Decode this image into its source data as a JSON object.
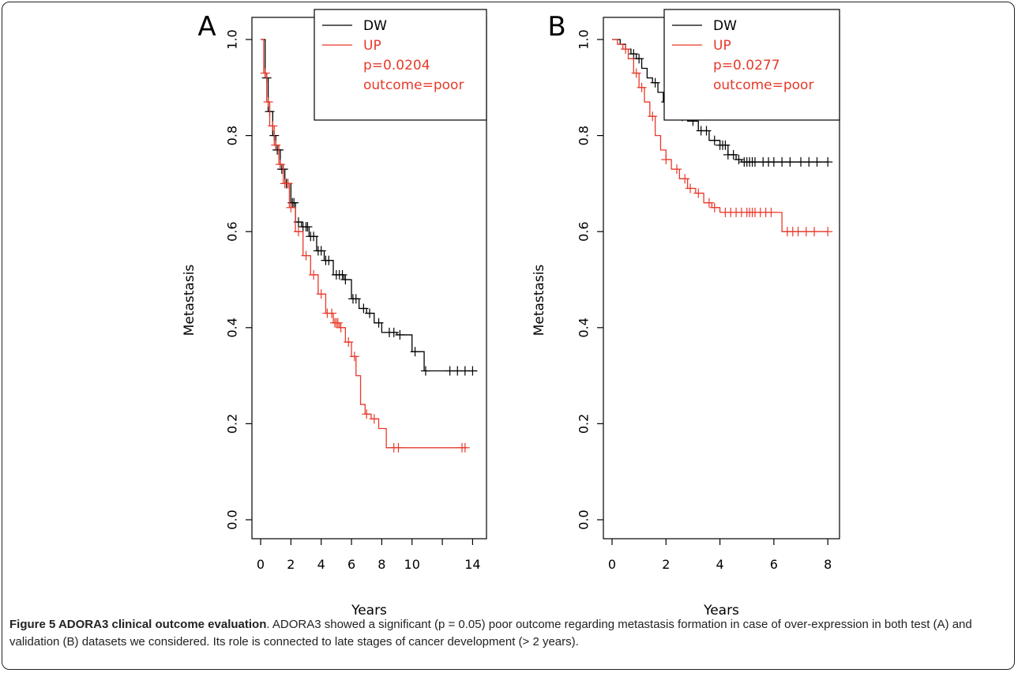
{
  "caption": {
    "label": "Figure 5",
    "title": "ADORA3 clinical outcome evaluation",
    "text": ". ADORA3 showed a significant (p = 0.05) poor outcome regarding metastasis formation in case of over-expression in both test (A) and validation (B) datasets we considered. Its role is connected to late stages of cancer development (> 2 years)."
  },
  "colors": {
    "DW": "#000000",
    "UP": "#e8392a"
  },
  "chart_data": [
    {
      "type": "line",
      "panel": "A",
      "xlabel": "Years",
      "ylabel": "Metastasis",
      "xlim": [
        0,
        14.5
      ],
      "ylim": [
        0,
        1.0
      ],
      "xticks": [
        0,
        2,
        4,
        6,
        8,
        10,
        12,
        14
      ],
      "xtick_labels": [
        "0",
        "2",
        "4",
        "6",
        "8",
        "10",
        "",
        "14"
      ],
      "yticks": [
        0.0,
        0.2,
        0.4,
        0.6,
        0.8,
        1.0
      ],
      "ytick_labels": [
        "0.0",
        "0.2",
        "0.4",
        "0.6",
        "0.8",
        "1.0"
      ],
      "legend": {
        "position": "top-right",
        "entries": [
          "DW",
          "UP"
        ],
        "p": "p=0.0204",
        "outcome": "outcome=poor"
      },
      "series": [
        {
          "name": "DW",
          "x": [
            0,
            0.3,
            0.5,
            0.8,
            1.0,
            1.3,
            1.6,
            2.0,
            2.3,
            2.7,
            3.2,
            3.7,
            4.2,
            4.8,
            5.5,
            6.0,
            6.5,
            7.0,
            7.5,
            8.0,
            9.0,
            10.0,
            10.4,
            10.8,
            14.3
          ],
          "y": [
            1.0,
            0.92,
            0.85,
            0.8,
            0.77,
            0.73,
            0.7,
            0.66,
            0.62,
            0.61,
            0.59,
            0.56,
            0.54,
            0.51,
            0.5,
            0.46,
            0.44,
            0.43,
            0.41,
            0.39,
            0.385,
            0.35,
            0.35,
            0.31,
            0.31
          ],
          "censor_x": [
            0.4,
            0.6,
            0.9,
            1.1,
            1.2,
            1.4,
            1.5,
            1.7,
            1.8,
            2.1,
            2.2,
            2.5,
            2.8,
            3.0,
            3.1,
            3.3,
            3.5,
            3.8,
            4.0,
            4.3,
            4.5,
            5.0,
            5.2,
            5.4,
            5.6,
            6.1,
            6.3,
            6.8,
            7.2,
            7.8,
            8.5,
            8.8,
            9.2,
            10.2,
            10.9,
            12.5,
            13.0,
            13.5,
            14.0
          ]
        },
        {
          "name": "UP",
          "x": [
            0,
            0.2,
            0.4,
            0.6,
            0.9,
            1.2,
            1.5,
            1.9,
            2.3,
            2.8,
            3.3,
            3.8,
            4.3,
            4.8,
            5.2,
            5.6,
            6.0,
            6.3,
            6.6,
            6.9,
            7.3,
            7.8,
            8.3,
            13.6
          ],
          "y": [
            1.0,
            0.93,
            0.87,
            0.82,
            0.78,
            0.74,
            0.7,
            0.65,
            0.6,
            0.55,
            0.51,
            0.47,
            0.43,
            0.41,
            0.4,
            0.37,
            0.34,
            0.3,
            0.24,
            0.22,
            0.21,
            0.19,
            0.15,
            0.15
          ],
          "censor_x": [
            0.3,
            0.5,
            0.8,
            1.0,
            1.3,
            1.6,
            1.8,
            2.0,
            2.5,
            3.0,
            3.5,
            4.0,
            4.4,
            4.7,
            4.9,
            5.0,
            5.1,
            5.3,
            5.8,
            6.2,
            7.0,
            7.5,
            8.8,
            9.1,
            13.3,
            13.5
          ]
        }
      ]
    },
    {
      "type": "line",
      "panel": "B",
      "xlabel": "Years",
      "ylabel": "Metastasis",
      "xlim": [
        0,
        8.2
      ],
      "ylim": [
        0,
        1.0
      ],
      "xticks": [
        0,
        2,
        4,
        6,
        8
      ],
      "xtick_labels": [
        "0",
        "2",
        "4",
        "6",
        "8"
      ],
      "yticks": [
        0.0,
        0.2,
        0.4,
        0.6,
        0.8,
        1.0
      ],
      "ytick_labels": [
        "0.0",
        "0.2",
        "0.4",
        "0.6",
        "0.8",
        "1.0"
      ],
      "legend": {
        "position": "top-right",
        "entries": [
          "DW",
          "UP"
        ],
        "p": "p=0.0277",
        "outcome": "outcome=poor"
      },
      "series": [
        {
          "name": "DW",
          "x": [
            0,
            0.3,
            0.5,
            0.7,
            0.9,
            1.1,
            1.3,
            1.5,
            1.7,
            1.9,
            2.1,
            2.4,
            2.8,
            3.2,
            3.6,
            4.0,
            4.3,
            4.6,
            4.8,
            8.0
          ],
          "y": [
            1.0,
            0.99,
            0.98,
            0.97,
            0.96,
            0.94,
            0.92,
            0.91,
            0.89,
            0.87,
            0.85,
            0.84,
            0.83,
            0.81,
            0.79,
            0.78,
            0.76,
            0.75,
            0.745,
            0.745
          ],
          "censor_x": [
            0.8,
            1.0,
            1.6,
            2.0,
            2.2,
            2.6,
            3.0,
            3.3,
            3.5,
            3.8,
            4.0,
            4.1,
            4.2,
            4.3,
            4.5,
            4.7,
            4.9,
            5.0,
            5.1,
            5.2,
            5.3,
            5.6,
            5.8,
            6.0,
            6.3,
            6.6,
            7.0,
            7.3,
            7.6,
            8.0
          ]
        },
        {
          "name": "UP",
          "x": [
            0,
            0.2,
            0.4,
            0.6,
            0.8,
            1.0,
            1.2,
            1.4,
            1.6,
            1.8,
            2.0,
            2.2,
            2.5,
            2.8,
            3.1,
            3.4,
            3.7,
            4.0,
            6.3,
            8.0
          ],
          "y": [
            1.0,
            0.99,
            0.98,
            0.96,
            0.93,
            0.9,
            0.87,
            0.84,
            0.8,
            0.77,
            0.75,
            0.73,
            0.71,
            0.69,
            0.68,
            0.66,
            0.65,
            0.64,
            0.6,
            0.6
          ],
          "censor_x": [
            0.5,
            0.9,
            1.1,
            1.5,
            2.0,
            2.4,
            2.7,
            2.9,
            3.2,
            3.6,
            3.8,
            4.2,
            4.4,
            4.6,
            4.8,
            5.0,
            5.1,
            5.2,
            5.3,
            5.5,
            5.7,
            5.9,
            6.5,
            6.7,
            6.9,
            7.2,
            7.5,
            8.0
          ]
        }
      ]
    }
  ]
}
